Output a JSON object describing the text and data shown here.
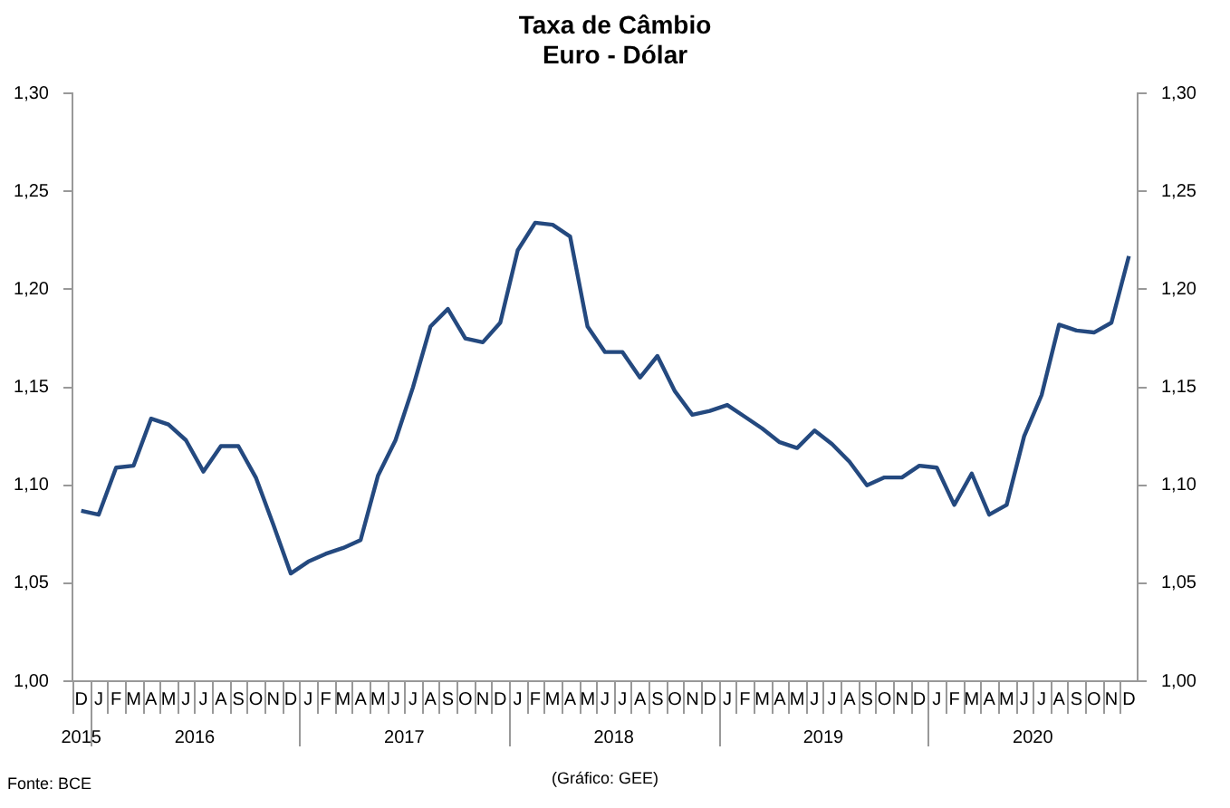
{
  "chart_data": {
    "type": "line",
    "title": "Taxa de Câmbio",
    "subtitle": "Euro - Dólar",
    "categories": [
      "D",
      "J",
      "F",
      "M",
      "A",
      "M",
      "J",
      "J",
      "A",
      "S",
      "O",
      "N",
      "D",
      "J",
      "F",
      "M",
      "A",
      "M",
      "J",
      "J",
      "A",
      "S",
      "O",
      "N",
      "D",
      "J",
      "F",
      "M",
      "A",
      "M",
      "J",
      "J",
      "A",
      "S",
      "O",
      "N",
      "D",
      "J",
      "F",
      "M",
      "A",
      "M",
      "J",
      "J",
      "A",
      "S",
      "O",
      "N",
      "D",
      "J",
      "F",
      "M",
      "A",
      "M",
      "J",
      "J",
      "A",
      "S",
      "O",
      "N",
      "D"
    ],
    "series": [
      {
        "color": "#24497f",
        "values": [
          1.087,
          1.085,
          1.109,
          1.11,
          1.134,
          1.131,
          1.123,
          1.107,
          1.12,
          1.12,
          1.104,
          1.08,
          1.055,
          1.061,
          1.065,
          1.068,
          1.072,
          1.105,
          1.123,
          1.15,
          1.181,
          1.19,
          1.175,
          1.173,
          1.183,
          1.22,
          1.234,
          1.233,
          1.227,
          1.181,
          1.168,
          1.168,
          1.155,
          1.166,
          1.148,
          1.136,
          1.138,
          1.141,
          1.135,
          1.129,
          1.122,
          1.119,
          1.128,
          1.121,
          1.112,
          1.1,
          1.104,
          1.104,
          1.11,
          1.109,
          1.09,
          1.106,
          1.085,
          1.09,
          1.125,
          1.146,
          1.182,
          1.179,
          1.178,
          1.183,
          1.217
        ]
      }
    ],
    "ylim": [
      1.0,
      1.3
    ],
    "yticks": [
      {
        "value": 1.0,
        "label": "1,00"
      },
      {
        "value": 1.05,
        "label": "1,05"
      },
      {
        "value": 1.1,
        "label": "1,10"
      },
      {
        "value": 1.15,
        "label": "1,15"
      },
      {
        "value": 1.2,
        "label": "1,20"
      },
      {
        "value": 1.25,
        "label": "1,25"
      },
      {
        "value": 1.3,
        "label": "1,30"
      }
    ],
    "y2lim": [
      1.0,
      1.3
    ],
    "y2ticks": [
      {
        "value": 1.0,
        "label": "1,00"
      },
      {
        "value": 1.05,
        "label": "1,05"
      },
      {
        "value": 1.1,
        "label": "1,10"
      },
      {
        "value": 1.15,
        "label": "1,15"
      },
      {
        "value": 1.2,
        "label": "1,20"
      },
      {
        "value": 1.25,
        "label": "1,25"
      },
      {
        "value": 1.3,
        "label": "1,30"
      }
    ],
    "annotations": [
      "2015",
      "2016",
      "2017",
      "2018",
      "2019",
      "2020",
      "Fonte: BCE",
      "(Gráfico: GEE)"
    ],
    "grid": false,
    "legend": false,
    "marker": "none",
    "line_style": "solid"
  }
}
